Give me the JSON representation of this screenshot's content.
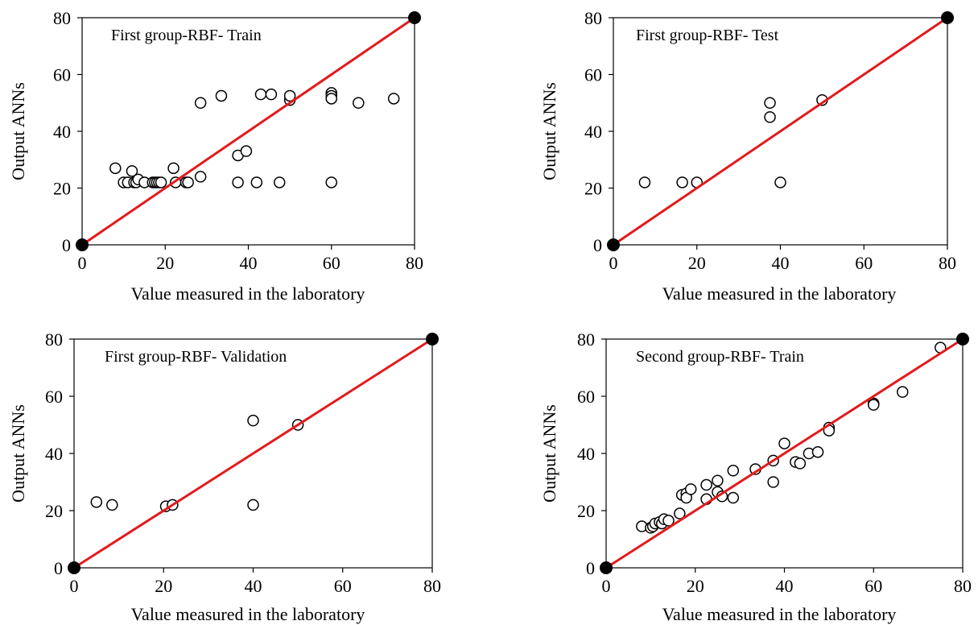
{
  "chart_data": [
    {
      "type": "scatter",
      "title": "First group-RBF- Train",
      "xlabel": "Value measured in the laboratory",
      "ylabel": "Output ANNs",
      "xlim": [
        0,
        80
      ],
      "ylim": [
        0,
        80
      ],
      "xticks": [
        0,
        20,
        40,
        60,
        80
      ],
      "yticks": [
        0,
        20,
        40,
        60,
        80
      ],
      "grid": false,
      "fit_line": {
        "from": [
          0,
          0
        ],
        "to": [
          80,
          80
        ],
        "color": "#e31a1c"
      },
      "points": [
        [
          8,
          27
        ],
        [
          10,
          22
        ],
        [
          11,
          22
        ],
        [
          12,
          26
        ],
        [
          12.5,
          22
        ],
        [
          13,
          22
        ],
        [
          13.5,
          23
        ],
        [
          15,
          22
        ],
        [
          17,
          22
        ],
        [
          17.5,
          22
        ],
        [
          18,
          22
        ],
        [
          18.5,
          22
        ],
        [
          19,
          22
        ],
        [
          22,
          27
        ],
        [
          22.5,
          22
        ],
        [
          25,
          22
        ],
        [
          25.5,
          22
        ],
        [
          28.5,
          24
        ],
        [
          28.5,
          50
        ],
        [
          33.5,
          52.5
        ],
        [
          37.5,
          31.5
        ],
        [
          37.5,
          22
        ],
        [
          39.5,
          33
        ],
        [
          42,
          22
        ],
        [
          43,
          53
        ],
        [
          45.5,
          53
        ],
        [
          47.5,
          22
        ],
        [
          50,
          51
        ],
        [
          50,
          52.5
        ],
        [
          60,
          53.5
        ],
        [
          60,
          52.5
        ],
        [
          60,
          51.5
        ],
        [
          60,
          22
        ],
        [
          66.5,
          50
        ],
        [
          75,
          51.5
        ]
      ]
    },
    {
      "type": "scatter",
      "title": "First group-RBF- Test",
      "xlabel": "Value measured in the laboratory",
      "ylabel": "Output ANNs",
      "xlim": [
        0,
        80
      ],
      "ylim": [
        0,
        80
      ],
      "xticks": [
        0,
        20,
        40,
        60,
        80
      ],
      "yticks": [
        0,
        20,
        40,
        60,
        80
      ],
      "grid": false,
      "fit_line": {
        "from": [
          0,
          0
        ],
        "to": [
          80,
          80
        ],
        "color": "#e31a1c"
      },
      "points": [
        [
          7.5,
          22
        ],
        [
          16.5,
          22
        ],
        [
          20,
          22
        ],
        [
          37.5,
          50
        ],
        [
          37.5,
          45
        ],
        [
          40,
          22
        ],
        [
          50,
          51
        ]
      ]
    },
    {
      "type": "scatter",
      "title": "First group-RBF- Validation",
      "xlabel": "Value measured in the laboratory",
      "ylabel": "Output ANNs",
      "xlim": [
        0,
        80
      ],
      "ylim": [
        0,
        80
      ],
      "xticks": [
        0,
        20,
        40,
        60,
        80
      ],
      "yticks": [
        0,
        20,
        40,
        60,
        80
      ],
      "grid": false,
      "fit_line": {
        "from": [
          0,
          0
        ],
        "to": [
          80,
          80
        ],
        "color": "#e31a1c"
      },
      "points": [
        [
          5,
          23
        ],
        [
          8.5,
          22
        ],
        [
          20.5,
          21.5
        ],
        [
          22,
          22
        ],
        [
          40,
          51.5
        ],
        [
          40,
          22
        ],
        [
          50,
          50
        ]
      ]
    },
    {
      "type": "scatter",
      "title": "Second group-RBF- Train",
      "xlabel": "Value measured in the laboratory",
      "ylabel": "Output ANNs",
      "xlim": [
        0,
        80
      ],
      "ylim": [
        0,
        80
      ],
      "xticks": [
        0,
        20,
        40,
        60,
        80
      ],
      "yticks": [
        0,
        20,
        40,
        60,
        80
      ],
      "grid": false,
      "fit_line": {
        "from": [
          0,
          0
        ],
        "to": [
          80,
          80
        ],
        "color": "#e31a1c"
      },
      "points": [
        [
          8,
          14.5
        ],
        [
          10,
          14
        ],
        [
          10.5,
          14.5
        ],
        [
          11,
          15.5
        ],
        [
          12,
          16
        ],
        [
          12.5,
          15.5
        ],
        [
          13,
          17
        ],
        [
          14,
          16.5
        ],
        [
          16.5,
          19
        ],
        [
          17,
          25.5
        ],
        [
          18,
          26
        ],
        [
          18,
          24.5
        ],
        [
          19,
          27.5
        ],
        [
          22.5,
          29
        ],
        [
          22.5,
          24
        ],
        [
          25,
          30.5
        ],
        [
          25,
          26.5
        ],
        [
          26,
          25
        ],
        [
          28.5,
          24.5
        ],
        [
          28.5,
          34
        ],
        [
          33.5,
          34.5
        ],
        [
          37.5,
          37.5
        ],
        [
          37.5,
          30
        ],
        [
          40,
          43.5
        ],
        [
          42.5,
          37
        ],
        [
          43.5,
          36.5
        ],
        [
          45.5,
          40
        ],
        [
          47.5,
          40.5
        ],
        [
          50,
          49
        ],
        [
          50,
          48
        ],
        [
          60,
          57.5
        ],
        [
          60,
          57
        ],
        [
          66.5,
          61.5
        ],
        [
          75,
          77
        ]
      ]
    }
  ],
  "marker_colors": {
    "stroke": "#000000",
    "fill": "#ffffff",
    "endpoint": "#000000"
  }
}
